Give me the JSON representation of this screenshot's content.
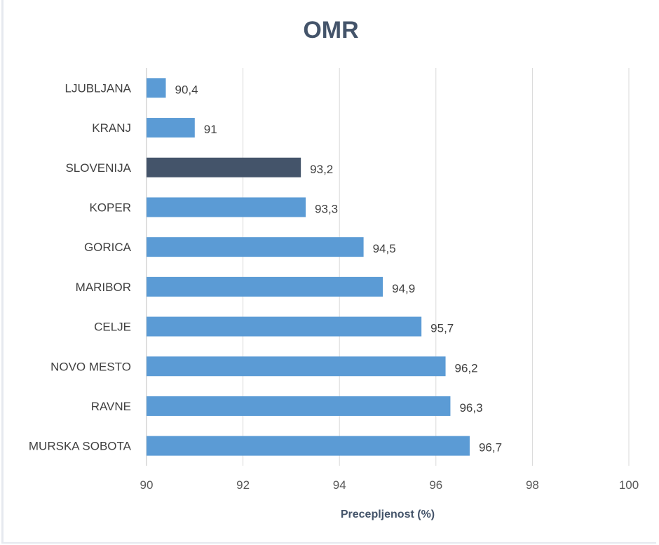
{
  "chart_data": {
    "type": "bar",
    "orientation": "horizontal",
    "title": "OMR",
    "xlabel": "Precepljenost (%)",
    "ylabel": "",
    "xlim": [
      90,
      100
    ],
    "xticks": [
      "90",
      "92",
      "94",
      "96",
      "98",
      "100"
    ],
    "grid": "vertical",
    "categories": [
      "LJUBLJANA",
      "KRANJ",
      "SLOVENIJA",
      "KOPER",
      "GORICA",
      "MARIBOR",
      "CELJE",
      "NOVO MESTO",
      "RAVNE",
      "MURSKA SOBOTA"
    ],
    "values": [
      90.4,
      91,
      93.2,
      93.3,
      94.5,
      94.9,
      95.7,
      96.2,
      96.3,
      96.7
    ],
    "data_labels": [
      "90,4",
      "91",
      "93,2",
      "93,3",
      "94,5",
      "94,9",
      "95,7",
      "96,2",
      "96,3",
      "96,7"
    ],
    "highlight_category": "SLOVENIJA",
    "colors": {
      "bar": "#5b9bd5",
      "highlight": "#44546a",
      "grid": "#d9d9d9"
    }
  }
}
